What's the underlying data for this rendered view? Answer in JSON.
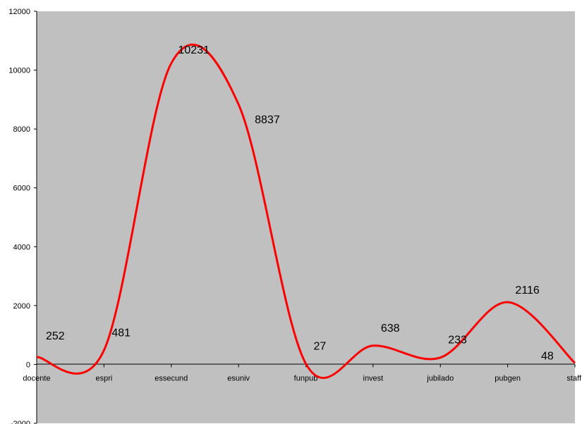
{
  "chart_data": {
    "type": "line",
    "smooth": true,
    "categories": [
      "docente",
      "espri",
      "essecund",
      "esuniv",
      "funpub",
      "invest",
      "jubilado",
      "pubgen",
      "staff"
    ],
    "series": [
      {
        "values": [
          252,
          481,
          10231,
          8837,
          27,
          638,
          233,
          2116,
          48
        ]
      }
    ],
    "y_ticks": [
      "-2000",
      "0",
      "2000",
      "4000",
      "6000",
      "8000",
      "10000",
      "12000"
    ],
    "ylim": [
      -2000,
      12000
    ],
    "title": "",
    "xlabel": "",
    "ylabel": "",
    "grid": false,
    "legend": "none",
    "colors": {
      "plot_background": "#c0c0c0",
      "line": "#ff0000",
      "axis": "#000000"
    }
  }
}
